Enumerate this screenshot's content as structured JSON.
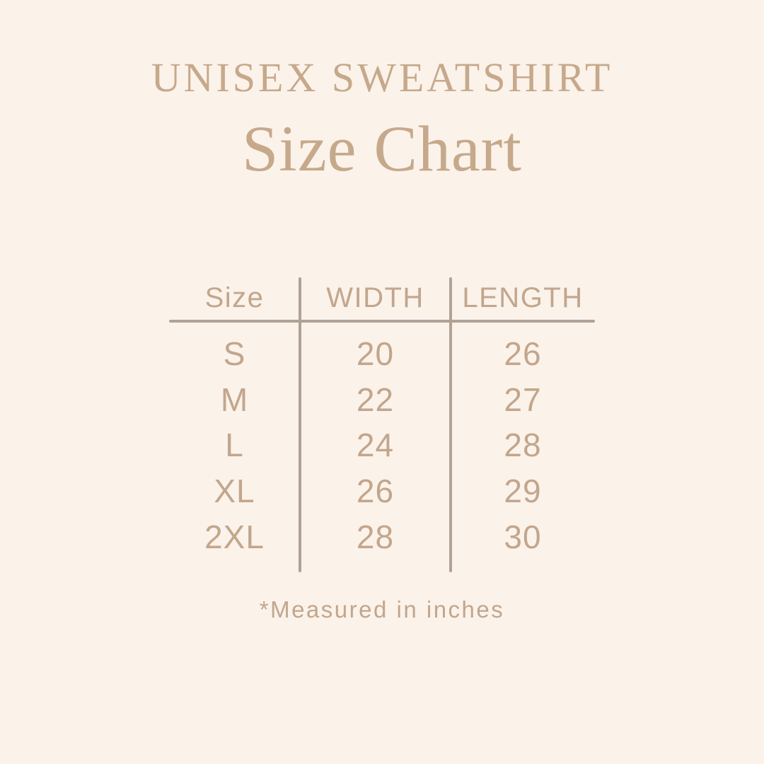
{
  "header": {
    "title": "UNISEX SWEATSHIRT",
    "subtitle": "Size Chart"
  },
  "table": {
    "columns": [
      "Size",
      "WIDTH",
      "LENGTH"
    ],
    "rows": [
      {
        "size": "S",
        "width": "20",
        "length": "26"
      },
      {
        "size": "M",
        "width": "22",
        "length": "27"
      },
      {
        "size": "L",
        "width": "24",
        "length": "28"
      },
      {
        "size": "XL",
        "width": "26",
        "length": "29"
      },
      {
        "size": "2XL",
        "width": "28",
        "length": "30"
      }
    ]
  },
  "footnote": "*Measured in inches",
  "colors": {
    "background": "#FBF2EA",
    "heading": "#C6A98B",
    "text": "#C2A68C",
    "line": "#B1A296"
  },
  "chart_data": {
    "type": "table",
    "title": "UNISEX SWEATSHIRT Size Chart",
    "columns": [
      "Size",
      "WIDTH",
      "LENGTH"
    ],
    "rows": [
      [
        "S",
        20,
        26
      ],
      [
        "M",
        22,
        27
      ],
      [
        "L",
        24,
        28
      ],
      [
        "XL",
        26,
        29
      ],
      [
        "2XL",
        28,
        30
      ]
    ],
    "units": "inches",
    "note": "*Measured in inches"
  }
}
